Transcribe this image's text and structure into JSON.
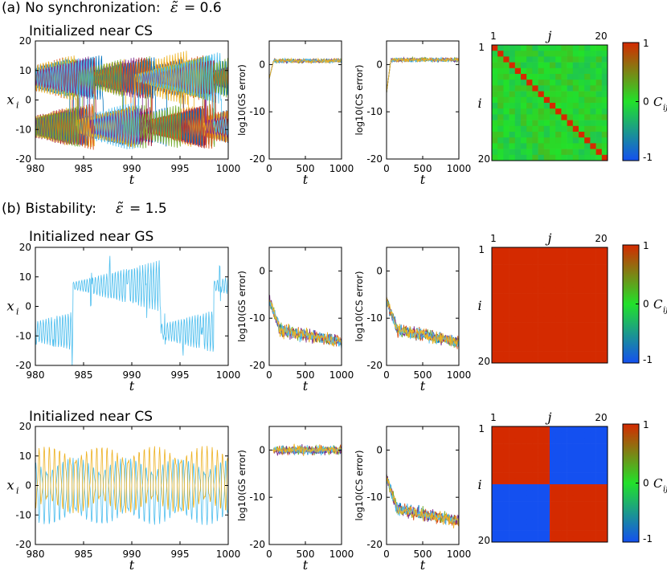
{
  "panel_a": {
    "label": "(a) No synchronization:",
    "param_symbol": "ε̃",
    "param_value": "= 0.6",
    "row1": {
      "subtitle": "Initialized near CS",
      "ts": {
        "ylabel": "x",
        "ylabel_sub": "i",
        "xlabel": "t",
        "xticks": [
          "980",
          "985",
          "990",
          "995",
          "1000"
        ],
        "yticks": [
          "20",
          "10",
          "0",
          "-10",
          "-20"
        ]
      },
      "gs": {
        "ylabel": "log10(GS error)",
        "xlabel": "t",
        "xticks": [
          "0",
          "500",
          "1000"
        ],
        "yticks": [
          "0",
          "-10",
          "-20"
        ]
      },
      "cs": {
        "ylabel": "log10(CS error)",
        "xlabel": "t",
        "xticks": [
          "0",
          "500",
          "1000"
        ],
        "yticks": [
          "0",
          "-10",
          "-20"
        ]
      },
      "matrix": {
        "col_label": "j",
        "row_label": "i",
        "first": "1",
        "last": "20",
        "row_first": "1",
        "row_last": "20"
      },
      "colorbar": {
        "label": "C",
        "label_sub": "ij",
        "ticks": [
          "1",
          "0",
          "-1"
        ]
      }
    }
  },
  "panel_b": {
    "label": "(b) Bistability:",
    "param_symbol": "ε̃",
    "param_value": "= 1.5",
    "row2": {
      "subtitle": "Initialized near GS",
      "ts": {
        "ylabel": "x",
        "ylabel_sub": "i",
        "xlabel": "t",
        "xticks": [
          "980",
          "985",
          "990",
          "995",
          "1000"
        ],
        "yticks": [
          "20",
          "10",
          "0",
          "-10",
          "-20"
        ]
      },
      "gs": {
        "ylabel": "log10(GS error)",
        "xlabel": "t",
        "xticks": [
          "0",
          "500",
          "1000"
        ],
        "yticks": [
          "0",
          "-10",
          "-20"
        ]
      },
      "cs": {
        "ylabel": "log10(CS error)",
        "xlabel": "t",
        "xticks": [
          "0",
          "500",
          "1000"
        ],
        "yticks": [
          "0",
          "-10",
          "-20"
        ]
      },
      "matrix": {
        "col_label": "j",
        "row_label": "i",
        "first": "1",
        "last": "20",
        "row_first": "1",
        "row_last": "20"
      },
      "colorbar": {
        "label": "C",
        "label_sub": "ij",
        "ticks": [
          "1",
          "0",
          "-1"
        ]
      }
    },
    "row3": {
      "subtitle": "Initialized near CS",
      "ts": {
        "ylabel": "x",
        "ylabel_sub": "i",
        "xlabel": "t",
        "xticks": [
          "980",
          "985",
          "990",
          "995",
          "1000"
        ],
        "yticks": [
          "20",
          "10",
          "0",
          "-10",
          "-20"
        ]
      },
      "gs": {
        "ylabel": "log10(GS error)",
        "xlabel": "t",
        "xticks": [
          "0",
          "500",
          "1000"
        ],
        "yticks": [
          "0",
          "-10",
          "-20"
        ]
      },
      "cs": {
        "ylabel": "log10(CS error)",
        "xlabel": "t",
        "xticks": [
          "0",
          "500",
          "1000"
        ],
        "yticks": [
          "0",
          "-10",
          "-20"
        ]
      },
      "matrix": {
        "col_label": "j",
        "row_label": "i",
        "first": "1",
        "last": "20",
        "row_first": "1",
        "row_last": "20"
      },
      "colorbar": {
        "label": "C",
        "label_sub": "ij",
        "ticks": [
          "1",
          "0",
          "-1"
        ]
      }
    }
  },
  "chart_data": [
    {
      "type": "line",
      "id": "a-ts",
      "title": "Initialized near CS",
      "xlabel": "t",
      "ylabel": "x_i",
      "xlim": [
        980,
        1000
      ],
      "ylim": [
        -20,
        20
      ],
      "series_count": 20,
      "regime": "chaotic, two bands around 7 and -9"
    },
    {
      "type": "line",
      "id": "a-gs",
      "xlabel": "t",
      "ylabel": "log10(GS error)",
      "xlim": [
        0,
        1000
      ],
      "ylim": [
        -20,
        5
      ],
      "level": 0.8,
      "start": -3
    },
    {
      "type": "line",
      "id": "a-cs",
      "xlabel": "t",
      "ylabel": "log10(CS error)",
      "xlim": [
        0,
        1000
      ],
      "ylim": [
        -20,
        5
      ],
      "level": 1.0,
      "start": -6
    },
    {
      "type": "heatmap",
      "id": "a-mat",
      "xlabel": "j",
      "ylabel": "i",
      "n": 20,
      "diagonal": 1,
      "offdiag_mean": 0.0,
      "clim": [
        -1,
        1
      ]
    },
    {
      "type": "line",
      "id": "b1-ts",
      "title": "Initialized near GS",
      "xlabel": "t",
      "ylabel": "x_i",
      "xlim": [
        980,
        1000
      ],
      "ylim": [
        -20,
        20
      ],
      "series_count": 1,
      "regime": "all nodes identical"
    },
    {
      "type": "line",
      "id": "b1-gs",
      "xlabel": "t",
      "ylabel": "log10(GS error)",
      "xlim": [
        0,
        1000
      ],
      "ylim": [
        -20,
        5
      ],
      "start": -6,
      "plateau": -12.5,
      "end": -15
    },
    {
      "type": "line",
      "id": "b1-cs",
      "xlabel": "t",
      "ylabel": "log10(CS error)",
      "xlim": [
        0,
        1000
      ],
      "ylim": [
        -20,
        5
      ],
      "start": -6,
      "plateau": -12.5,
      "end": -15
    },
    {
      "type": "heatmap",
      "id": "b1-mat",
      "xlabel": "j",
      "ylabel": "i",
      "n": 20,
      "value_all": 1,
      "clim": [
        -1,
        1
      ]
    },
    {
      "type": "line",
      "id": "b2-ts",
      "title": "Initialized near CS",
      "xlabel": "t",
      "ylabel": "x_i",
      "xlim": [
        980,
        1000
      ],
      "ylim": [
        -20,
        20
      ],
      "series_count": 2,
      "regime": "two anti-phase clusters"
    },
    {
      "type": "line",
      "id": "b2-gs",
      "xlabel": "t",
      "ylabel": "log10(GS error)",
      "xlim": [
        0,
        1000
      ],
      "ylim": [
        -20,
        5
      ],
      "level": 0.0
    },
    {
      "type": "line",
      "id": "b2-cs",
      "xlabel": "t",
      "ylabel": "log10(CS error)",
      "xlim": [
        0,
        1000
      ],
      "ylim": [
        -20,
        5
      ],
      "start": -6,
      "plateau": -12.5,
      "end": -15
    },
    {
      "type": "heatmap",
      "id": "b2-mat",
      "xlabel": "j",
      "ylabel": "i",
      "n": 20,
      "blocks": [
        [
          1,
          -1
        ],
        [
          -1,
          1
        ]
      ],
      "clim": [
        -1,
        1
      ]
    }
  ],
  "colors": {
    "series": [
      "#0072bd",
      "#d95319",
      "#edb120",
      "#7e2f8e",
      "#77ac30",
      "#4dbeee",
      "#a2142f"
    ],
    "corr_pos": "#d42a00",
    "corr_zero": "#22e12a",
    "corr_neg": "#1450f0"
  }
}
